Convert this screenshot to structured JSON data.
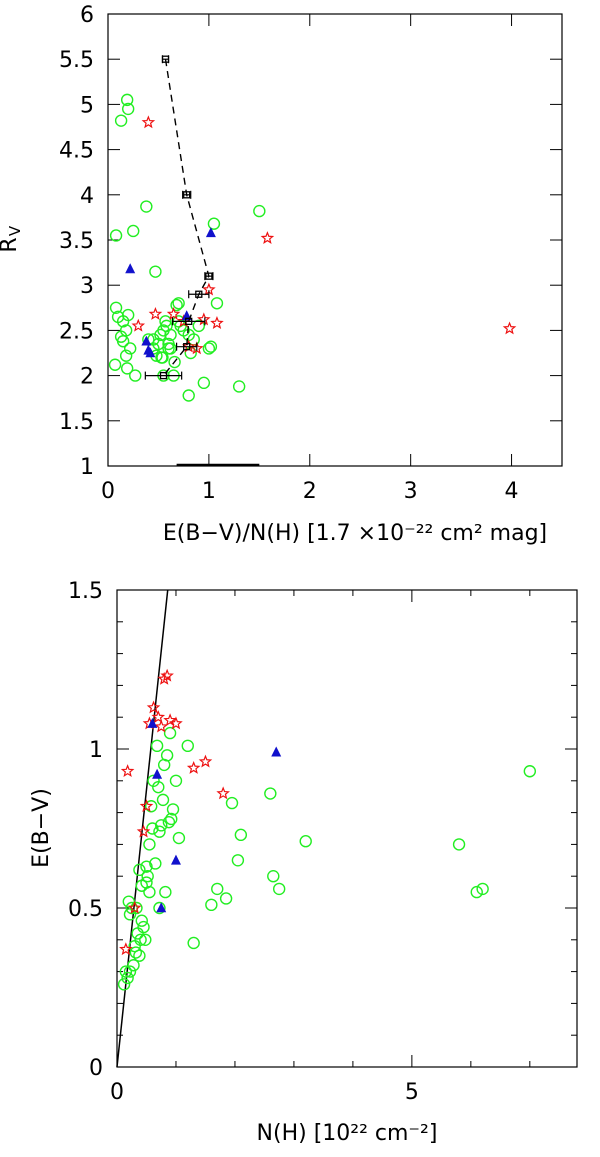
{
  "chart_data": [
    {
      "type": "scatter",
      "id": "top",
      "title": "",
      "xlabel": "E(B−V)/N(H)  [1.7 ×10⁻²²  cm²  mag]",
      "ylabel": "R",
      "ylabel_sub": "V",
      "xlim": [
        0,
        4.5
      ],
      "ylim": [
        1,
        6
      ],
      "xticks": [
        0,
        1,
        2,
        3,
        4
      ],
      "xtick_labels": [
        "0",
        "1",
        "2",
        "3",
        "4"
      ],
      "yticks": [
        1,
        1.5,
        2,
        2.5,
        3,
        3.5,
        4,
        4.5,
        5,
        5.5,
        6
      ],
      "ytick_labels": [
        "1",
        "1.5",
        "2",
        "2.5",
        "3",
        "3.5",
        "4",
        "4.5",
        "5",
        "5.5",
        "6"
      ],
      "colors": {
        "green": "#22ee22",
        "red": "#ee1111",
        "blue": "#1111cc",
        "black": "#000000"
      },
      "series": [
        {
          "name": "green-circles",
          "marker": "circle",
          "color": "#22ee22",
          "x": [
            0.19,
            0.2,
            0.13,
            0.08,
            0.1,
            0.15,
            0.2,
            0.18,
            0.13,
            0.22,
            0.25,
            0.18,
            0.19,
            0.38,
            0.47,
            0.27,
            0.08,
            0.07,
            0.15,
            0.55,
            0.52,
            0.6,
            0.58,
            0.45,
            0.53,
            0.62,
            0.68,
            0.7,
            0.72,
            0.65,
            0.75,
            0.8,
            0.82,
            0.85,
            0.9,
            0.95,
            1.02,
            1.05,
            1.08,
            1.0,
            0.8,
            1.3,
            1.5,
            0.55,
            0.6,
            0.5,
            0.4,
            0.45,
            0.48,
            0.57,
            0.62,
            0.66,
            0.7,
            0.54
          ],
          "y": [
            5.05,
            4.95,
            4.82,
            3.55,
            2.65,
            2.6,
            2.67,
            2.5,
            2.43,
            2.3,
            3.6,
            2.22,
            2.08,
            3.87,
            3.15,
            2.0,
            2.75,
            2.12,
            2.38,
            2.5,
            2.45,
            2.35,
            2.55,
            2.4,
            2.2,
            2.3,
            2.78,
            2.6,
            2.55,
            2.0,
            2.5,
            1.78,
            2.25,
            2.4,
            2.55,
            1.92,
            2.32,
            3.68,
            2.8,
            2.3,
            2.45,
            1.88,
            3.82,
            2.0,
            2.3,
            2.35,
            2.4,
            2.3,
            2.22,
            2.6,
            2.45,
            2.15,
            2.8,
            2.2
          ]
        },
        {
          "name": "red-stars",
          "marker": "star",
          "color": "#ee1111",
          "x": [
            0.4,
            0.47,
            0.3,
            0.65,
            0.75,
            0.8,
            0.88,
            0.95,
            1.0,
            1.08,
            1.58,
            3.98
          ],
          "y": [
            4.8,
            2.68,
            2.55,
            2.68,
            2.6,
            2.32,
            2.3,
            2.62,
            2.95,
            2.58,
            3.52,
            2.52
          ]
        },
        {
          "name": "blue-triangles",
          "marker": "triangle",
          "color": "#1111cc",
          "x": [
            0.22,
            1.02,
            0.38,
            0.4,
            0.42,
            0.78
          ],
          "y": [
            3.18,
            3.58,
            2.38,
            2.28,
            2.25,
            2.66
          ]
        },
        {
          "name": "black-squares-dashed",
          "marker": "square",
          "color": "#000000",
          "line": "dashed",
          "x": [
            0.57,
            0.78,
            1.0,
            0.9,
            0.8,
            0.78,
            0.55
          ],
          "y": [
            5.5,
            4.0,
            3.1,
            2.9,
            2.6,
            2.32,
            2.0
          ],
          "xerr": [
            0.03,
            0.04,
            0.04,
            0.1,
            0.16,
            0.1,
            0.18
          ]
        }
      ],
      "annotations": [
        {
          "type": "hbar",
          "x0": 0.68,
          "x1": 1.5,
          "y": 1.0
        }
      ]
    },
    {
      "type": "scatter",
      "id": "bottom",
      "title": "",
      "xlabel": "N(H)  [10²²  cm⁻²]",
      "ylabel": "E(B−V)",
      "xlim": [
        0,
        7.8
      ],
      "ylim": [
        0,
        1.5
      ],
      "xticks": [
        0,
        5
      ],
      "xtick_labels": [
        "0",
        "5"
      ],
      "xminor": [
        1,
        2,
        3,
        4,
        6,
        7
      ],
      "yticks": [
        0,
        0.5,
        1,
        1.5
      ],
      "ytick_labels": [
        "0",
        "0.5",
        "1",
        "1.5"
      ],
      "yminor": [
        0.1,
        0.2,
        0.3,
        0.4,
        0.6,
        0.7,
        0.8,
        0.9,
        1.1,
        1.2,
        1.3,
        1.4
      ],
      "reference_line": {
        "x": [
          0,
          0.86
        ],
        "y": [
          0,
          1.5
        ]
      },
      "series": [
        {
          "name": "green-circles",
          "marker": "circle",
          "color": "#22ee22",
          "x": [
            0.12,
            0.15,
            0.18,
            0.2,
            0.22,
            0.25,
            0.3,
            0.32,
            0.35,
            0.38,
            0.4,
            0.42,
            0.45,
            0.48,
            0.5,
            0.52,
            0.55,
            0.58,
            0.6,
            0.62,
            0.65,
            0.68,
            0.7,
            0.72,
            0.75,
            0.78,
            0.8,
            0.82,
            0.85,
            0.88,
            0.9,
            0.92,
            0.95,
            1.0,
            1.05,
            1.2,
            1.3,
            1.6,
            1.7,
            1.85,
            1.95,
            2.05,
            2.1,
            2.6,
            2.65,
            2.75,
            3.2,
            5.8,
            6.1,
            6.2,
            7.0,
            0.55,
            0.5,
            0.42,
            0.38,
            0.33,
            0.28,
            0.22,
            0.72
          ],
          "y": [
            0.26,
            0.3,
            0.28,
            0.52,
            0.48,
            0.5,
            0.38,
            0.36,
            0.42,
            0.35,
            0.4,
            0.46,
            0.44,
            0.4,
            0.58,
            0.6,
            0.55,
            0.82,
            0.75,
            0.9,
            0.64,
            1.01,
            0.88,
            0.74,
            0.76,
            0.84,
            0.95,
            0.55,
            0.98,
            0.77,
            1.05,
            0.78,
            0.81,
            0.9,
            0.72,
            1.01,
            0.39,
            0.51,
            0.56,
            0.53,
            0.83,
            0.65,
            0.73,
            0.86,
            0.6,
            0.56,
            0.71,
            0.7,
            0.55,
            0.56,
            0.93,
            0.7,
            0.63,
            0.57,
            0.62,
            0.5,
            0.32,
            0.3,
            0.5
          ],
          "_note": "approximate positions read from the figure"
        },
        {
          "name": "red-stars",
          "marker": "star",
          "color": "#ee1111",
          "x": [
            0.15,
            0.18,
            0.3,
            0.45,
            0.5,
            0.55,
            0.62,
            0.7,
            0.75,
            0.8,
            0.85,
            0.9,
            1.0,
            1.3,
            1.5,
            1.8
          ],
          "y": [
            0.37,
            0.93,
            0.5,
            0.74,
            0.82,
            1.08,
            1.13,
            1.1,
            1.07,
            1.22,
            1.23,
            1.09,
            1.08,
            0.94,
            0.96,
            0.86
          ]
        },
        {
          "name": "blue-triangles",
          "marker": "triangle",
          "color": "#1111cc",
          "x": [
            0.6,
            0.68,
            0.75,
            1.0,
            2.7
          ],
          "y": [
            1.08,
            0.92,
            0.5,
            0.65,
            0.99
          ]
        }
      ]
    }
  ]
}
